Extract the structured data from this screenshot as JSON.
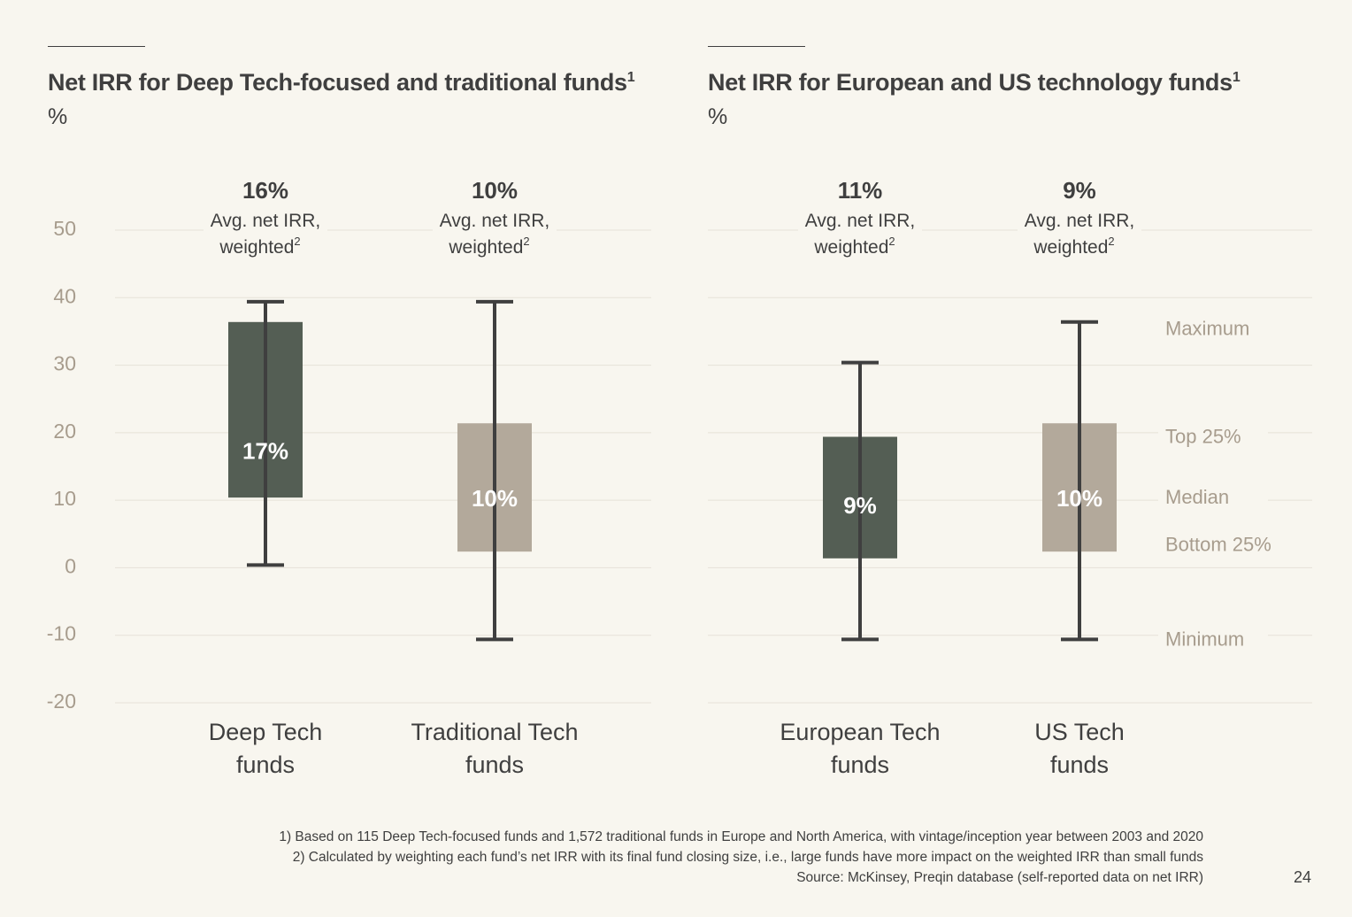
{
  "panels": [
    {
      "title": "Net IRR for Deep Tech-focused and traditional funds",
      "title_sup": "1",
      "unit": "%"
    },
    {
      "title": "Net IRR for European and US technology funds",
      "title_sup": "1",
      "unit": "%"
    }
  ],
  "chart_data": [
    {
      "type": "box",
      "title": "Net IRR for Deep Tech-focused and traditional funds",
      "unit": "%",
      "ylim": [
        -20,
        50
      ],
      "yticks": [
        50,
        40,
        30,
        20,
        10,
        0,
        -10,
        -20
      ],
      "grid": true,
      "categories": [
        {
          "label_lines": [
            "Deep Tech",
            "funds"
          ],
          "avg_value": "16%",
          "avg_label_1": "Avg. net IRR,",
          "avg_label_2": "weighted",
          "avg_sup": "2",
          "min": 0,
          "q1": 10,
          "median": 17,
          "q3": 36,
          "max": 39,
          "median_label": "17%",
          "color": "#545e54"
        },
        {
          "label_lines": [
            "Traditional Tech",
            "funds"
          ],
          "avg_value": "10%",
          "avg_label_1": "Avg. net IRR,",
          "avg_label_2": "weighted",
          "avg_sup": "2",
          "min": -11,
          "q1": 2,
          "median": 10,
          "q3": 21,
          "max": 39,
          "median_label": "10%",
          "color": "#b3a99b"
        }
      ]
    },
    {
      "type": "box",
      "title": "Net IRR for European and US technology funds",
      "unit": "%",
      "ylim": [
        -20,
        50
      ],
      "grid": true,
      "categories": [
        {
          "label_lines": [
            "European Tech",
            "funds"
          ],
          "avg_value": "11%",
          "avg_label_1": "Avg. net IRR,",
          "avg_label_2": "weighted",
          "avg_sup": "2",
          "min": -11,
          "q1": 1,
          "median": 9,
          "q3": 19,
          "max": 30,
          "median_label": "9%",
          "color": "#545e54"
        },
        {
          "label_lines": [
            "US Tech",
            "funds"
          ],
          "avg_value": "9%",
          "avg_label_1": "Avg. net IRR,",
          "avg_label_2": "weighted",
          "avg_sup": "2",
          "min": -11,
          "q1": 2,
          "median": 10,
          "q3": 21,
          "max": 36,
          "median_label": "10%",
          "color": "#b3a99b"
        }
      ],
      "legend": [
        {
          "label": "Maximum",
          "value": 35
        },
        {
          "label": "Top 25%",
          "value": 19
        },
        {
          "label": "Median",
          "value": 10
        },
        {
          "label": "Bottom 25%",
          "value": 3
        },
        {
          "label": "Minimum",
          "value": -11
        }
      ]
    }
  ],
  "footnotes": [
    "1) Based on 115 Deep Tech-focused funds and 1,572 traditional funds in Europe and North America, with vintage/inception year between 2003 and 2020",
    "2) Calculated by weighting each fund’s net IRR with its final fund closing size, i.e., large funds have more impact on the weighted IRR than small funds",
    "Source: McKinsey, Preqin database (self-reported data on net IRR)"
  ],
  "page_number": "24",
  "colors": {
    "background": "#f8f6ef",
    "dark_bar": "#545e54",
    "light_bar": "#b3a99b",
    "whisker": "#3f3f3f",
    "tick_text": "#a79c8d",
    "grid": "#e6e2d8"
  }
}
